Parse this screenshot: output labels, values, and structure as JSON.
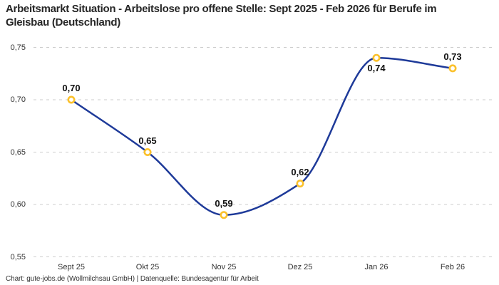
{
  "header": {
    "title": "Arbeitsmarkt Situation - Arbeitslose pro offene Stelle: Sept 2025 - Feb 2026 für Berufe im Gleisbau (Deutschland)"
  },
  "footer": {
    "credit": "Chart: gute-jobs.de (Wollmilchsau GmbH) | Datenquelle: Bundesagentur für Arbeit"
  },
  "chart_data": {
    "type": "line",
    "title": "Arbeitsmarkt Situation - Arbeitslose pro offene Stelle: Sept 2025 - Feb 2026 für Berufe im Gleisbau (Deutschland)",
    "categories": [
      "Sept 25",
      "Okt 25",
      "Nov 25",
      "Dez 25",
      "Jan 26",
      "Feb 26"
    ],
    "values": [
      0.7,
      0.65,
      0.59,
      0.62,
      0.74,
      0.73
    ],
    "point_labels": [
      "0,70",
      "0,65",
      "0,59",
      "0,62",
      "0,74",
      "0,73"
    ],
    "point_label_positions": [
      "above",
      "above",
      "above",
      "above",
      "below",
      "above"
    ],
    "y_ticks": [
      "0,75",
      "0,70",
      "0,65",
      "0,60",
      "0,55"
    ],
    "y_tick_values": [
      0.75,
      0.7,
      0.65,
      0.6,
      0.55
    ],
    "ylim": [
      0.55,
      0.75
    ],
    "xlabel": "",
    "ylabel": "",
    "grid": "horizontal-dashed",
    "legend": "none",
    "colors": {
      "line": "#1e3a99",
      "marker_ring": "#fbc12c",
      "marker_fill": "#ffffff",
      "gridline": "#cccccc",
      "tick_text": "#333333",
      "data_label": "#111111",
      "title_text": "#262626"
    }
  }
}
